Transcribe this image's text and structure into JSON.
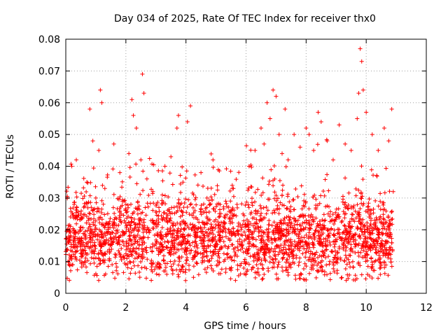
{
  "chart_data": {
    "type": "scatter",
    "title": "Day 034 of 2025, Rate Of TEC Index for receiver thx0",
    "xlabel": "GPS time / hours",
    "ylabel": "ROTI / TECUs",
    "xlim": [
      0,
      12
    ],
    "ylim": [
      0,
      0.08
    ],
    "xticks": [
      0,
      2,
      4,
      6,
      8,
      10,
      12
    ],
    "xtick_labels": [
      "0",
      "2",
      "4",
      "6",
      "8",
      "10",
      "12"
    ],
    "yticks": [
      0,
      0.01,
      0.02,
      0.03,
      0.04,
      0.05,
      0.06,
      0.07,
      0.08
    ],
    "ytick_labels": [
      "0",
      "0.01",
      "0.02",
      "0.03",
      "0.04",
      "0.05",
      "0.06",
      "0.07",
      "0.08"
    ],
    "grid": true,
    "marker": "+",
    "color": "#ff0000",
    "x_range_of_data": [
      0,
      10.9
    ],
    "series": [
      {
        "name": "ROTI",
        "x": [
          0.1,
          0.2,
          0.35,
          0.5,
          0.7,
          0.8,
          0.9,
          1.0,
          1.1,
          1.15,
          1.2,
          1.3,
          1.45,
          1.6,
          1.8,
          2.0,
          2.1,
          2.2,
          2.25,
          2.35,
          2.5,
          2.55,
          2.6,
          2.7,
          2.9,
          3.1,
          3.3,
          3.5,
          3.7,
          3.75,
          3.9,
          4.05,
          4.15,
          4.3,
          4.5,
          4.7,
          4.9,
          5.1,
          5.3,
          5.5,
          5.7,
          5.9,
          6.1,
          6.3,
          6.5,
          6.6,
          6.7,
          6.8,
          6.9,
          7.0,
          7.1,
          7.2,
          7.3,
          7.4,
          7.6,
          7.8,
          8.0,
          8.1,
          8.25,
          8.4,
          8.5,
          8.7,
          8.9,
          9.1,
          9.3,
          9.5,
          9.7,
          9.75,
          9.8,
          9.85,
          9.9,
          10.0,
          10.2,
          10.4,
          10.6,
          10.75,
          10.85,
          10.9
        ],
        "y": [
          0.018,
          0.04,
          0.042,
          0.025,
          0.035,
          0.058,
          0.048,
          0.03,
          0.045,
          0.064,
          0.06,
          0.033,
          0.022,
          0.047,
          0.038,
          0.028,
          0.044,
          0.061,
          0.056,
          0.052,
          0.042,
          0.069,
          0.063,
          0.036,
          0.032,
          0.027,
          0.04,
          0.043,
          0.052,
          0.056,
          0.035,
          0.054,
          0.059,
          0.026,
          0.038,
          0.03,
          0.042,
          0.024,
          0.022,
          0.026,
          0.028,
          0.025,
          0.04,
          0.045,
          0.052,
          0.047,
          0.06,
          0.055,
          0.064,
          0.062,
          0.05,
          0.044,
          0.058,
          0.042,
          0.05,
          0.046,
          0.052,
          0.05,
          0.045,
          0.057,
          0.054,
          0.048,
          0.042,
          0.053,
          0.047,
          0.045,
          0.055,
          0.063,
          0.077,
          0.073,
          0.064,
          0.057,
          0.05,
          0.045,
          0.052,
          0.048,
          0.058,
          0.032
        ]
      }
    ]
  }
}
